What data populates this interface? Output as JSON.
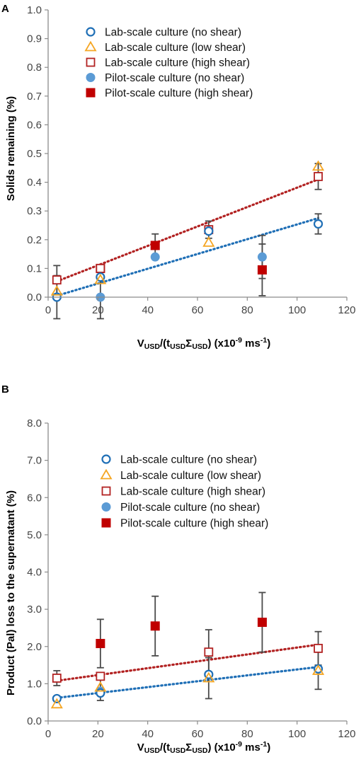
{
  "chart_data": [
    {
      "panel_label": "A",
      "type": "scatter",
      "xlabel": {
        "p1": "V",
        "s1": "USD",
        "p2": "/(t",
        "s2": "USD",
        "p3": "Σ",
        "s3": "USD",
        "p4": ")  (x10",
        "sup": "-9",
        "p5": " ms",
        "sup2": "-1",
        "p6": ")"
      },
      "ylabel": "Solids remaining (%)",
      "xlim": [
        0,
        120
      ],
      "ylim": [
        0,
        1.0
      ],
      "xticks": [
        "0",
        "20",
        "40",
        "60",
        "80",
        "100",
        "120"
      ],
      "yticks": [
        "0.0",
        "0.1",
        "0.2",
        "0.3",
        "0.4",
        "0.5",
        "0.6",
        "0.7",
        "0.8",
        "0.9",
        "1.0"
      ],
      "legend_position": "top-left",
      "grid": false,
      "series": [
        {
          "name": "Lab-scale culture (no shear)",
          "marker": "circle-open",
          "color": "#1f6fb6",
          "points": [
            {
              "x": 3.5,
              "y": 0.0,
              "err": 0.075
            },
            {
              "x": 21,
              "y": 0.07
            },
            {
              "x": 64.5,
              "y": 0.23
            },
            {
              "x": 108.5,
              "y": 0.255,
              "err": 0.035
            }
          ]
        },
        {
          "name": "Lab-scale culture (low shear)",
          "marker": "triangle-open",
          "color": "#f5a623",
          "points": [
            {
              "x": 3.5,
              "y": 0.02
            },
            {
              "x": 21,
              "y": 0.06
            },
            {
              "x": 64.5,
              "y": 0.19
            },
            {
              "x": 108.5,
              "y": 0.455
            }
          ]
        },
        {
          "name": "Lab-scale culture (high shear)",
          "marker": "square-open",
          "color": "#b22222",
          "points": [
            {
              "x": 3.5,
              "y": 0.06,
              "err": 0.05
            },
            {
              "x": 21,
              "y": 0.1
            },
            {
              "x": 64.5,
              "y": 0.235,
              "err": 0.03
            },
            {
              "x": 108.5,
              "y": 0.42,
              "err": 0.045
            }
          ]
        },
        {
          "name": "Pilot-scale culture (no shear)",
          "marker": "circle-filled",
          "color": "#5b9bd5",
          "points": [
            {
              "x": 21,
              "y": 0.0,
              "err": 0.075
            },
            {
              "x": 43,
              "y": 0.14
            },
            {
              "x": 86,
              "y": 0.14,
              "err": 0.075
            }
          ]
        },
        {
          "name": "Pilot-scale culture (high shear)",
          "marker": "square-filled",
          "color": "#c00000",
          "points": [
            {
              "x": 21,
              "y": 0.1
            },
            {
              "x": 43,
              "y": 0.18,
              "err": 0.04
            },
            {
              "x": 86,
              "y": 0.095,
              "err": 0.09
            }
          ]
        }
      ],
      "trendlines": [
        {
          "color": "#1f6fb6",
          "x": [
            3.5,
            108.5
          ],
          "y": [
            0.005,
            0.275
          ]
        },
        {
          "color": "#b22222",
          "x": [
            3.5,
            108.5
          ],
          "y": [
            0.055,
            0.41
          ]
        }
      ]
    },
    {
      "panel_label": "B",
      "type": "scatter",
      "xlabel": {
        "p1": "V",
        "s1": "USD",
        "p2": "/(t",
        "s2": "USD",
        "p3": "Σ",
        "s3": "USD",
        "p4": ")  (x10",
        "sup": "-9",
        "p5": " ms",
        "sup2": "-1",
        "p6": ")"
      },
      "ylabel": "Product  (Pal) loss to the supernatant  (%)",
      "xlim": [
        0,
        120
      ],
      "ylim": [
        0,
        8.0
      ],
      "xticks": [
        "0",
        "20",
        "40",
        "60",
        "80",
        "100",
        "120"
      ],
      "yticks": [
        "0.0",
        "1.0",
        "2.0",
        "3.0",
        "4.0",
        "5.0",
        "6.0",
        "7.0",
        "8.0"
      ],
      "legend_position": "top-left",
      "grid": false,
      "series": [
        {
          "name": "Lab-scale culture (no shear)",
          "marker": "circle-open",
          "color": "#1f6fb6",
          "points": [
            {
              "x": 3.5,
              "y": 0.6
            },
            {
              "x": 21,
              "y": 0.75
            },
            {
              "x": 64.5,
              "y": 1.25
            },
            {
              "x": 108.5,
              "y": 1.4
            }
          ]
        },
        {
          "name": "Lab-scale culture (low shear)",
          "marker": "triangle-open",
          "color": "#f5a623",
          "points": [
            {
              "x": 3.5,
              "y": 0.45
            },
            {
              "x": 21,
              "y": 0.9,
              "err": 0.35
            },
            {
              "x": 64.5,
              "y": 1.15,
              "err": 0.55
            },
            {
              "x": 108.5,
              "y": 1.35,
              "err": 0.5
            }
          ]
        },
        {
          "name": "Lab-scale culture (high shear)",
          "marker": "square-open",
          "color": "#b22222",
          "points": [
            {
              "x": 3.5,
              "y": 1.15,
              "err": 0.2
            },
            {
              "x": 21,
              "y": 1.2
            },
            {
              "x": 64.5,
              "y": 1.85,
              "err": 0.6
            },
            {
              "x": 108.5,
              "y": 1.95,
              "err": 0.45
            }
          ]
        },
        {
          "name": "Pilot-scale culture (no shear)",
          "marker": "circle-filled",
          "color": "#5b9bd5",
          "points": [
            {
              "x": 21,
              "y": 0.8
            }
          ]
        },
        {
          "name": "Pilot-scale culture (high shear)",
          "marker": "square-filled",
          "color": "#c00000",
          "points": [
            {
              "x": 21,
              "y": 2.08,
              "err": 0.65
            },
            {
              "x": 43,
              "y": 2.55,
              "err": 0.8
            },
            {
              "x": 86,
              "y": 2.65,
              "err": 0.8
            }
          ]
        }
      ],
      "trendlines": [
        {
          "color": "#1f6fb6",
          "x": [
            3.5,
            108.5
          ],
          "y": [
            0.62,
            1.45
          ]
        },
        {
          "color": "#b22222",
          "x": [
            3.5,
            108.5
          ],
          "y": [
            1.08,
            2.05
          ]
        }
      ]
    }
  ]
}
